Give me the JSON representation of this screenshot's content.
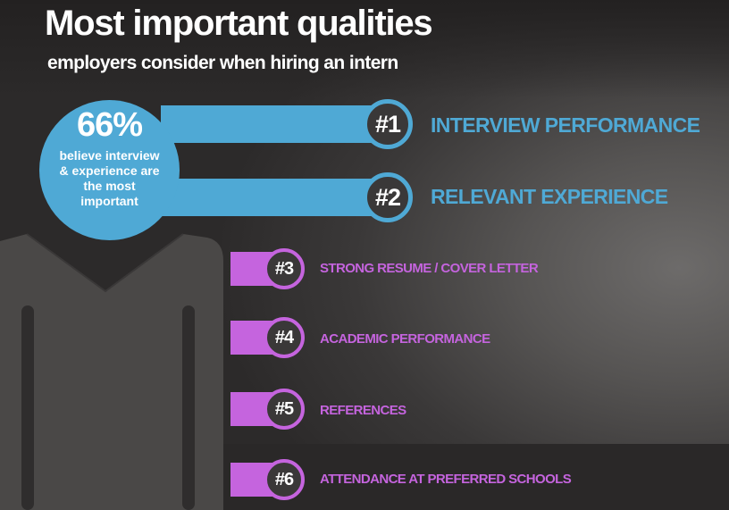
{
  "title": "Most important qualities",
  "subtitle": "employers consider when hiring an intern",
  "stat": {
    "percent": "66%",
    "caption": "believe interview & experience are the most important"
  },
  "colors": {
    "blue": "#4fa9d5",
    "purple": "#c564de",
    "shirt": "#4a4847",
    "background": "#3a3838"
  },
  "qualities": [
    {
      "rank": "#1",
      "label": "INTERVIEW PERFORMANCE"
    },
    {
      "rank": "#2",
      "label": "RELEVANT EXPERIENCE"
    },
    {
      "rank": "#3",
      "label": "STRONG RESUME / COVER LETTER"
    },
    {
      "rank": "#4",
      "label": "ACADEMIC PERFORMANCE"
    },
    {
      "rank": "#5",
      "label": "REFERENCES"
    },
    {
      "rank": "#6",
      "label": "ATTENDANCE AT PREFERRED SCHOOLS"
    }
  ]
}
